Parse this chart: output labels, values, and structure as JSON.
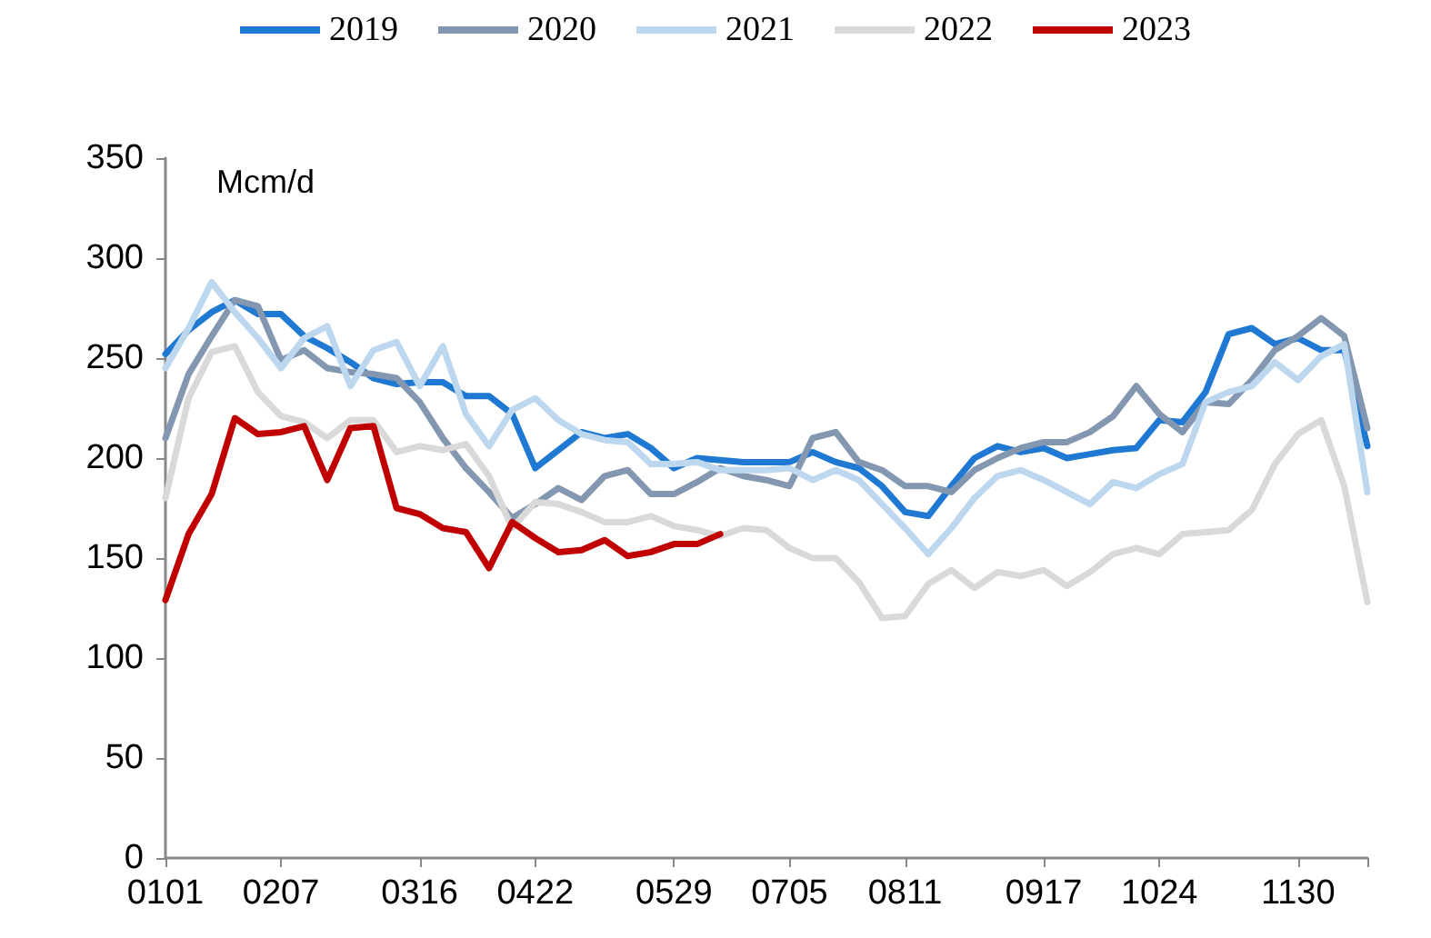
{
  "chart_data": {
    "type": "line",
    "ylabel": "Mcm/d",
    "categories": [
      "0101",
      null,
      null,
      null,
      null,
      "0207",
      null,
      null,
      null,
      null,
      null,
      "0316",
      null,
      null,
      null,
      null,
      "0422",
      null,
      null,
      null,
      null,
      null,
      "0529",
      null,
      null,
      null,
      null,
      "0705",
      null,
      null,
      null,
      null,
      "0811",
      null,
      null,
      null,
      null,
      null,
      "0917",
      null,
      null,
      null,
      null,
      "1024",
      null,
      null,
      null,
      null,
      null,
      "1130",
      null,
      null,
      null
    ],
    "series": [
      {
        "name": "2019",
        "color": "#1f78d1",
        "values": [
          252,
          264,
          273,
          279,
          272,
          272,
          261,
          255,
          248,
          240,
          237,
          238,
          238,
          231,
          231,
          222,
          195,
          204,
          213,
          210,
          212,
          205,
          195,
          200,
          199,
          198,
          198,
          198,
          203,
          198,
          195,
          186,
          173,
          171,
          186,
          200,
          206,
          203,
          205,
          200,
          202,
          204,
          205,
          219,
          218,
          233,
          262,
          265,
          257,
          260,
          254,
          254,
          206
        ]
      },
      {
        "name": "2020",
        "color": "#8497b0",
        "values": [
          210,
          242,
          261,
          279,
          276,
          249,
          254,
          245,
          243,
          242,
          240,
          228,
          210,
          195,
          183,
          170,
          177,
          185,
          179,
          191,
          194,
          182,
          182,
          188,
          195,
          191,
          189,
          186,
          210,
          213,
          198,
          194,
          186,
          186,
          183,
          194,
          200,
          205,
          208,
          208,
          213,
          221,
          236,
          222,
          213,
          228,
          227,
          239,
          254,
          261,
          270,
          261,
          215
        ]
      },
      {
        "name": "2021",
        "color": "#bdd7ee",
        "values": [
          245,
          265,
          288,
          273,
          260,
          245,
          260,
          266,
          236,
          254,
          258,
          236,
          256,
          222,
          206,
          224,
          230,
          219,
          212,
          209,
          208,
          197,
          197,
          198,
          194,
          194,
          194,
          195,
          189,
          194,
          189,
          177,
          165,
          152,
          165,
          180,
          191,
          194,
          189,
          183,
          177,
          188,
          185,
          192,
          197,
          228,
          233,
          236,
          248,
          239,
          251,
          257,
          183
        ]
      },
      {
        "name": "2022",
        "color": "#d9d9d9",
        "values": [
          180,
          230,
          253,
          256,
          233,
          221,
          218,
          210,
          219,
          219,
          203,
          206,
          204,
          207,
          191,
          165,
          178,
          177,
          173,
          168,
          168,
          171,
          166,
          164,
          161,
          165,
          164,
          155,
          150,
          150,
          138,
          120,
          121,
          137,
          144,
          135,
          143,
          141,
          144,
          136,
          143,
          152,
          155,
          152,
          162,
          163,
          164,
          174,
          197,
          212,
          219,
          186,
          128
        ]
      },
      {
        "name": "2023",
        "color": "#c00000",
        "values": [
          129,
          162,
          182,
          220,
          212,
          213,
          216,
          189,
          215,
          216,
          175,
          172,
          165,
          163,
          145,
          168,
          160,
          153,
          154,
          159,
          151,
          153,
          157,
          157,
          162,
          null,
          null,
          null,
          null,
          null,
          null,
          null,
          null,
          null,
          null,
          null,
          null,
          null,
          null,
          null,
          null,
          null,
          null,
          null,
          null,
          null,
          null,
          null,
          null,
          null,
          null,
          null,
          null
        ]
      }
    ],
    "ylim": [
      0,
      350
    ],
    "yticks": [
      0,
      50,
      100,
      150,
      200,
      250,
      300,
      350
    ],
    "grid": false,
    "legend": "top",
    "marker": "none",
    "line_style": "solid"
  }
}
